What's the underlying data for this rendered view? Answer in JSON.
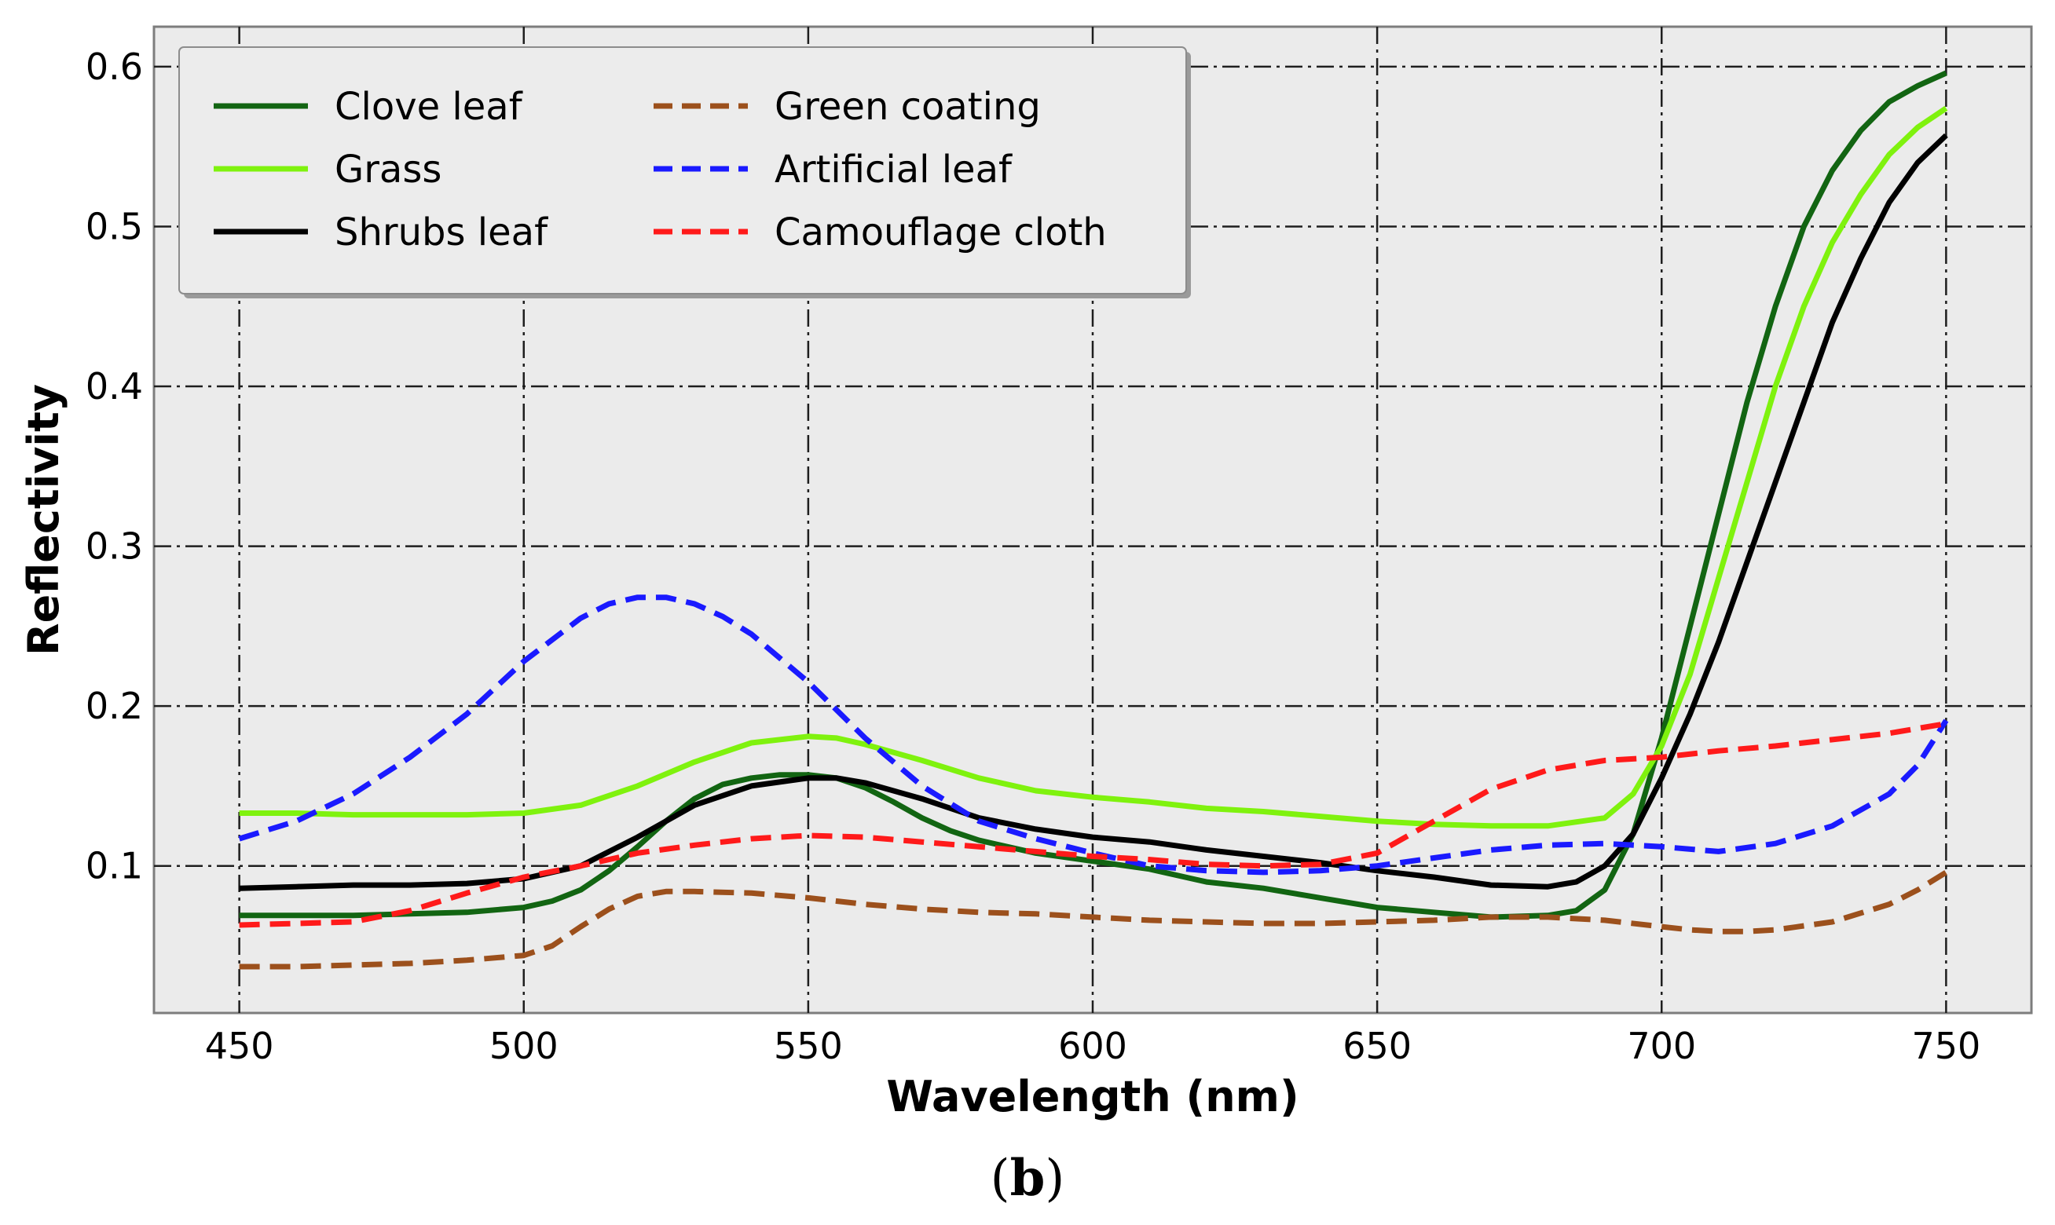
{
  "chart_data": {
    "type": "line",
    "xlabel": "Wavelength (nm)",
    "ylabel": "Reflectivity",
    "caption": {
      "open": "(",
      "letter": "b",
      "close": ")"
    },
    "xlim": [
      435,
      765
    ],
    "ylim": [
      0.008,
      0.625
    ],
    "xticks": [
      450,
      500,
      550,
      600,
      650,
      700,
      750
    ],
    "yticks": [
      0.1,
      0.2,
      0.3,
      0.4,
      0.5,
      0.6
    ],
    "ytick_labels": [
      "0.1",
      "0.2",
      "0.3",
      "0.4",
      "0.5",
      "0.6"
    ],
    "grid": true,
    "legend_position": "upper-left",
    "background": "#ebebeb",
    "series": [
      {
        "name": "Clove leaf",
        "color": "#126512",
        "style": "solid",
        "x": [
          450,
          460,
          470,
          480,
          490,
          500,
          505,
          510,
          515,
          520,
          525,
          530,
          535,
          540,
          545,
          550,
          555,
          560,
          565,
          570,
          575,
          580,
          590,
          600,
          610,
          620,
          630,
          640,
          650,
          660,
          670,
          680,
          685,
          690,
          695,
          700,
          705,
          710,
          715,
          720,
          725,
          730,
          735,
          740,
          745,
          750
        ],
        "y": [
          0.069,
          0.069,
          0.069,
          0.07,
          0.071,
          0.074,
          0.078,
          0.085,
          0.097,
          0.112,
          0.128,
          0.142,
          0.151,
          0.155,
          0.157,
          0.157,
          0.155,
          0.149,
          0.14,
          0.13,
          0.122,
          0.116,
          0.108,
          0.103,
          0.098,
          0.09,
          0.086,
          0.08,
          0.074,
          0.071,
          0.068,
          0.069,
          0.072,
          0.085,
          0.12,
          0.18,
          0.25,
          0.32,
          0.39,
          0.45,
          0.5,
          0.535,
          0.56,
          0.578,
          0.588,
          0.596
        ]
      },
      {
        "name": "Grass",
        "color": "#7ff20e",
        "style": "solid",
        "x": [
          450,
          460,
          470,
          480,
          490,
          500,
          510,
          520,
          530,
          540,
          550,
          555,
          560,
          570,
          580,
          590,
          600,
          610,
          620,
          630,
          640,
          650,
          660,
          670,
          680,
          690,
          695,
          700,
          705,
          710,
          715,
          720,
          725,
          730,
          735,
          740,
          745,
          750
        ],
        "y": [
          0.133,
          0.133,
          0.132,
          0.132,
          0.132,
          0.133,
          0.138,
          0.15,
          0.165,
          0.177,
          0.181,
          0.18,
          0.176,
          0.166,
          0.155,
          0.147,
          0.143,
          0.14,
          0.136,
          0.134,
          0.131,
          0.128,
          0.126,
          0.125,
          0.125,
          0.13,
          0.145,
          0.175,
          0.22,
          0.28,
          0.34,
          0.4,
          0.45,
          0.49,
          0.52,
          0.545,
          0.562,
          0.574
        ]
      },
      {
        "name": "Shrubs leaf",
        "color": "#000000",
        "style": "solid",
        "x": [
          450,
          460,
          470,
          480,
          490,
          500,
          510,
          520,
          530,
          540,
          550,
          555,
          560,
          570,
          580,
          590,
          600,
          610,
          620,
          630,
          640,
          650,
          660,
          670,
          680,
          685,
          690,
          695,
          700,
          705,
          710,
          715,
          720,
          725,
          730,
          735,
          740,
          745,
          750
        ],
        "y": [
          0.086,
          0.087,
          0.088,
          0.088,
          0.089,
          0.092,
          0.1,
          0.118,
          0.138,
          0.15,
          0.155,
          0.155,
          0.152,
          0.142,
          0.13,
          0.123,
          0.118,
          0.115,
          0.11,
          0.106,
          0.102,
          0.097,
          0.093,
          0.088,
          0.087,
          0.09,
          0.1,
          0.12,
          0.155,
          0.195,
          0.24,
          0.29,
          0.34,
          0.39,
          0.44,
          0.48,
          0.515,
          0.54,
          0.557
        ]
      },
      {
        "name": "Green coating",
        "color": "#9c501c",
        "style": "dashed",
        "x": [
          450,
          460,
          470,
          480,
          490,
          500,
          505,
          510,
          515,
          520,
          525,
          530,
          540,
          550,
          560,
          570,
          580,
          590,
          600,
          610,
          620,
          630,
          640,
          650,
          660,
          670,
          680,
          690,
          700,
          705,
          710,
          715,
          720,
          730,
          740,
          745,
          750
        ],
        "y": [
          0.037,
          0.037,
          0.038,
          0.039,
          0.041,
          0.044,
          0.05,
          0.062,
          0.073,
          0.081,
          0.084,
          0.084,
          0.083,
          0.08,
          0.076,
          0.073,
          0.071,
          0.07,
          0.068,
          0.066,
          0.065,
          0.064,
          0.064,
          0.065,
          0.066,
          0.068,
          0.068,
          0.066,
          0.062,
          0.06,
          0.059,
          0.059,
          0.06,
          0.065,
          0.076,
          0.085,
          0.096
        ]
      },
      {
        "name": "Artificial leaf",
        "color": "#1a1aff",
        "style": "dashed",
        "x": [
          450,
          460,
          470,
          480,
          490,
          500,
          510,
          515,
          520,
          525,
          530,
          535,
          540,
          550,
          560,
          570,
          580,
          590,
          600,
          610,
          620,
          630,
          640,
          650,
          660,
          670,
          680,
          690,
          700,
          710,
          720,
          730,
          740,
          745,
          750
        ],
        "y": [
          0.117,
          0.128,
          0.145,
          0.168,
          0.195,
          0.228,
          0.255,
          0.264,
          0.268,
          0.268,
          0.264,
          0.256,
          0.245,
          0.215,
          0.18,
          0.15,
          0.128,
          0.117,
          0.108,
          0.1,
          0.097,
          0.096,
          0.097,
          0.1,
          0.105,
          0.11,
          0.113,
          0.114,
          0.112,
          0.109,
          0.114,
          0.125,
          0.145,
          0.163,
          0.191
        ]
      },
      {
        "name": "Camouflage cloth",
        "color": "#ff1a1a",
        "style": "dashed",
        "x": [
          450,
          460,
          470,
          480,
          490,
          500,
          510,
          520,
          530,
          540,
          550,
          560,
          570,
          580,
          590,
          600,
          610,
          620,
          630,
          640,
          650,
          660,
          670,
          680,
          690,
          700,
          710,
          720,
          730,
          740,
          750
        ],
        "y": [
          0.063,
          0.064,
          0.065,
          0.072,
          0.083,
          0.093,
          0.1,
          0.108,
          0.113,
          0.117,
          0.119,
          0.118,
          0.115,
          0.112,
          0.109,
          0.106,
          0.104,
          0.101,
          0.1,
          0.101,
          0.108,
          0.128,
          0.148,
          0.16,
          0.166,
          0.168,
          0.172,
          0.175,
          0.179,
          0.183,
          0.189
        ]
      }
    ]
  }
}
